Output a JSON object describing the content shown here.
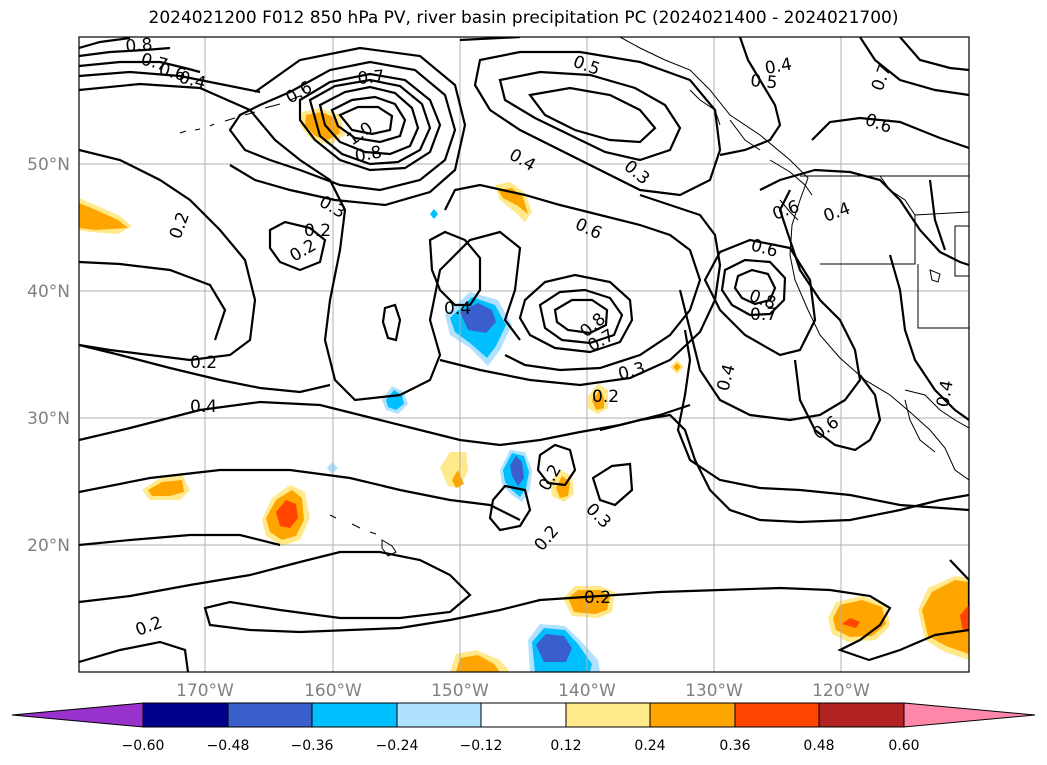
{
  "title": "2024021200 F012 850 hPa PV, river basin precipitation PC (2024021400 - 2024021700)",
  "axes": {
    "lat_labels": [
      "50°N",
      "40°N",
      "30°N",
      "20°N"
    ],
    "lon_labels": [
      "170°W",
      "160°W",
      "150°W",
      "140°W",
      "130°W",
      "120°W"
    ],
    "label_color": "#808080"
  },
  "contour_labels": [
    "0.8",
    "0.7",
    "0.6",
    "0.4",
    "0.7",
    "0.6",
    "1.0",
    "0.8",
    "0.3",
    "0.2",
    "0.2",
    "0.2",
    "0.4",
    "0.2",
    "0.5",
    "0.4",
    "0.5",
    "0.7",
    "0.6",
    "0.4",
    "0.3",
    "0.6",
    "0.6",
    "0.6",
    "0.4",
    "0.8",
    "0.7",
    "0.4",
    "0.8",
    "0.7",
    "0.3",
    "0.4",
    "0.6",
    "0.4",
    "0.3",
    "0.2",
    "0.2",
    "0.2",
    "0.2",
    "0.2"
  ],
  "colorbar": {
    "ticks": [
      "−0.60",
      "−0.48",
      "−0.36",
      "−0.24",
      "−0.12",
      "0.12",
      "0.24",
      "0.36",
      "0.48",
      "0.60"
    ],
    "colors": [
      "#9932cc",
      "#00008b",
      "#3a5fcd",
      "#00bfff",
      "#b0e2ff",
      "#ffffff",
      "#ffe98a",
      "#ffa500",
      "#ff4500",
      "#b22222",
      "#ff88aa"
    ]
  },
  "shading_colors": {
    "light_yellow": "#ffe98a",
    "orange": "#ffa500",
    "red_orange": "#ff4500",
    "light_blue": "#b0e2ff",
    "cyan": "#00bfff",
    "blue": "#3a5fcd"
  }
}
